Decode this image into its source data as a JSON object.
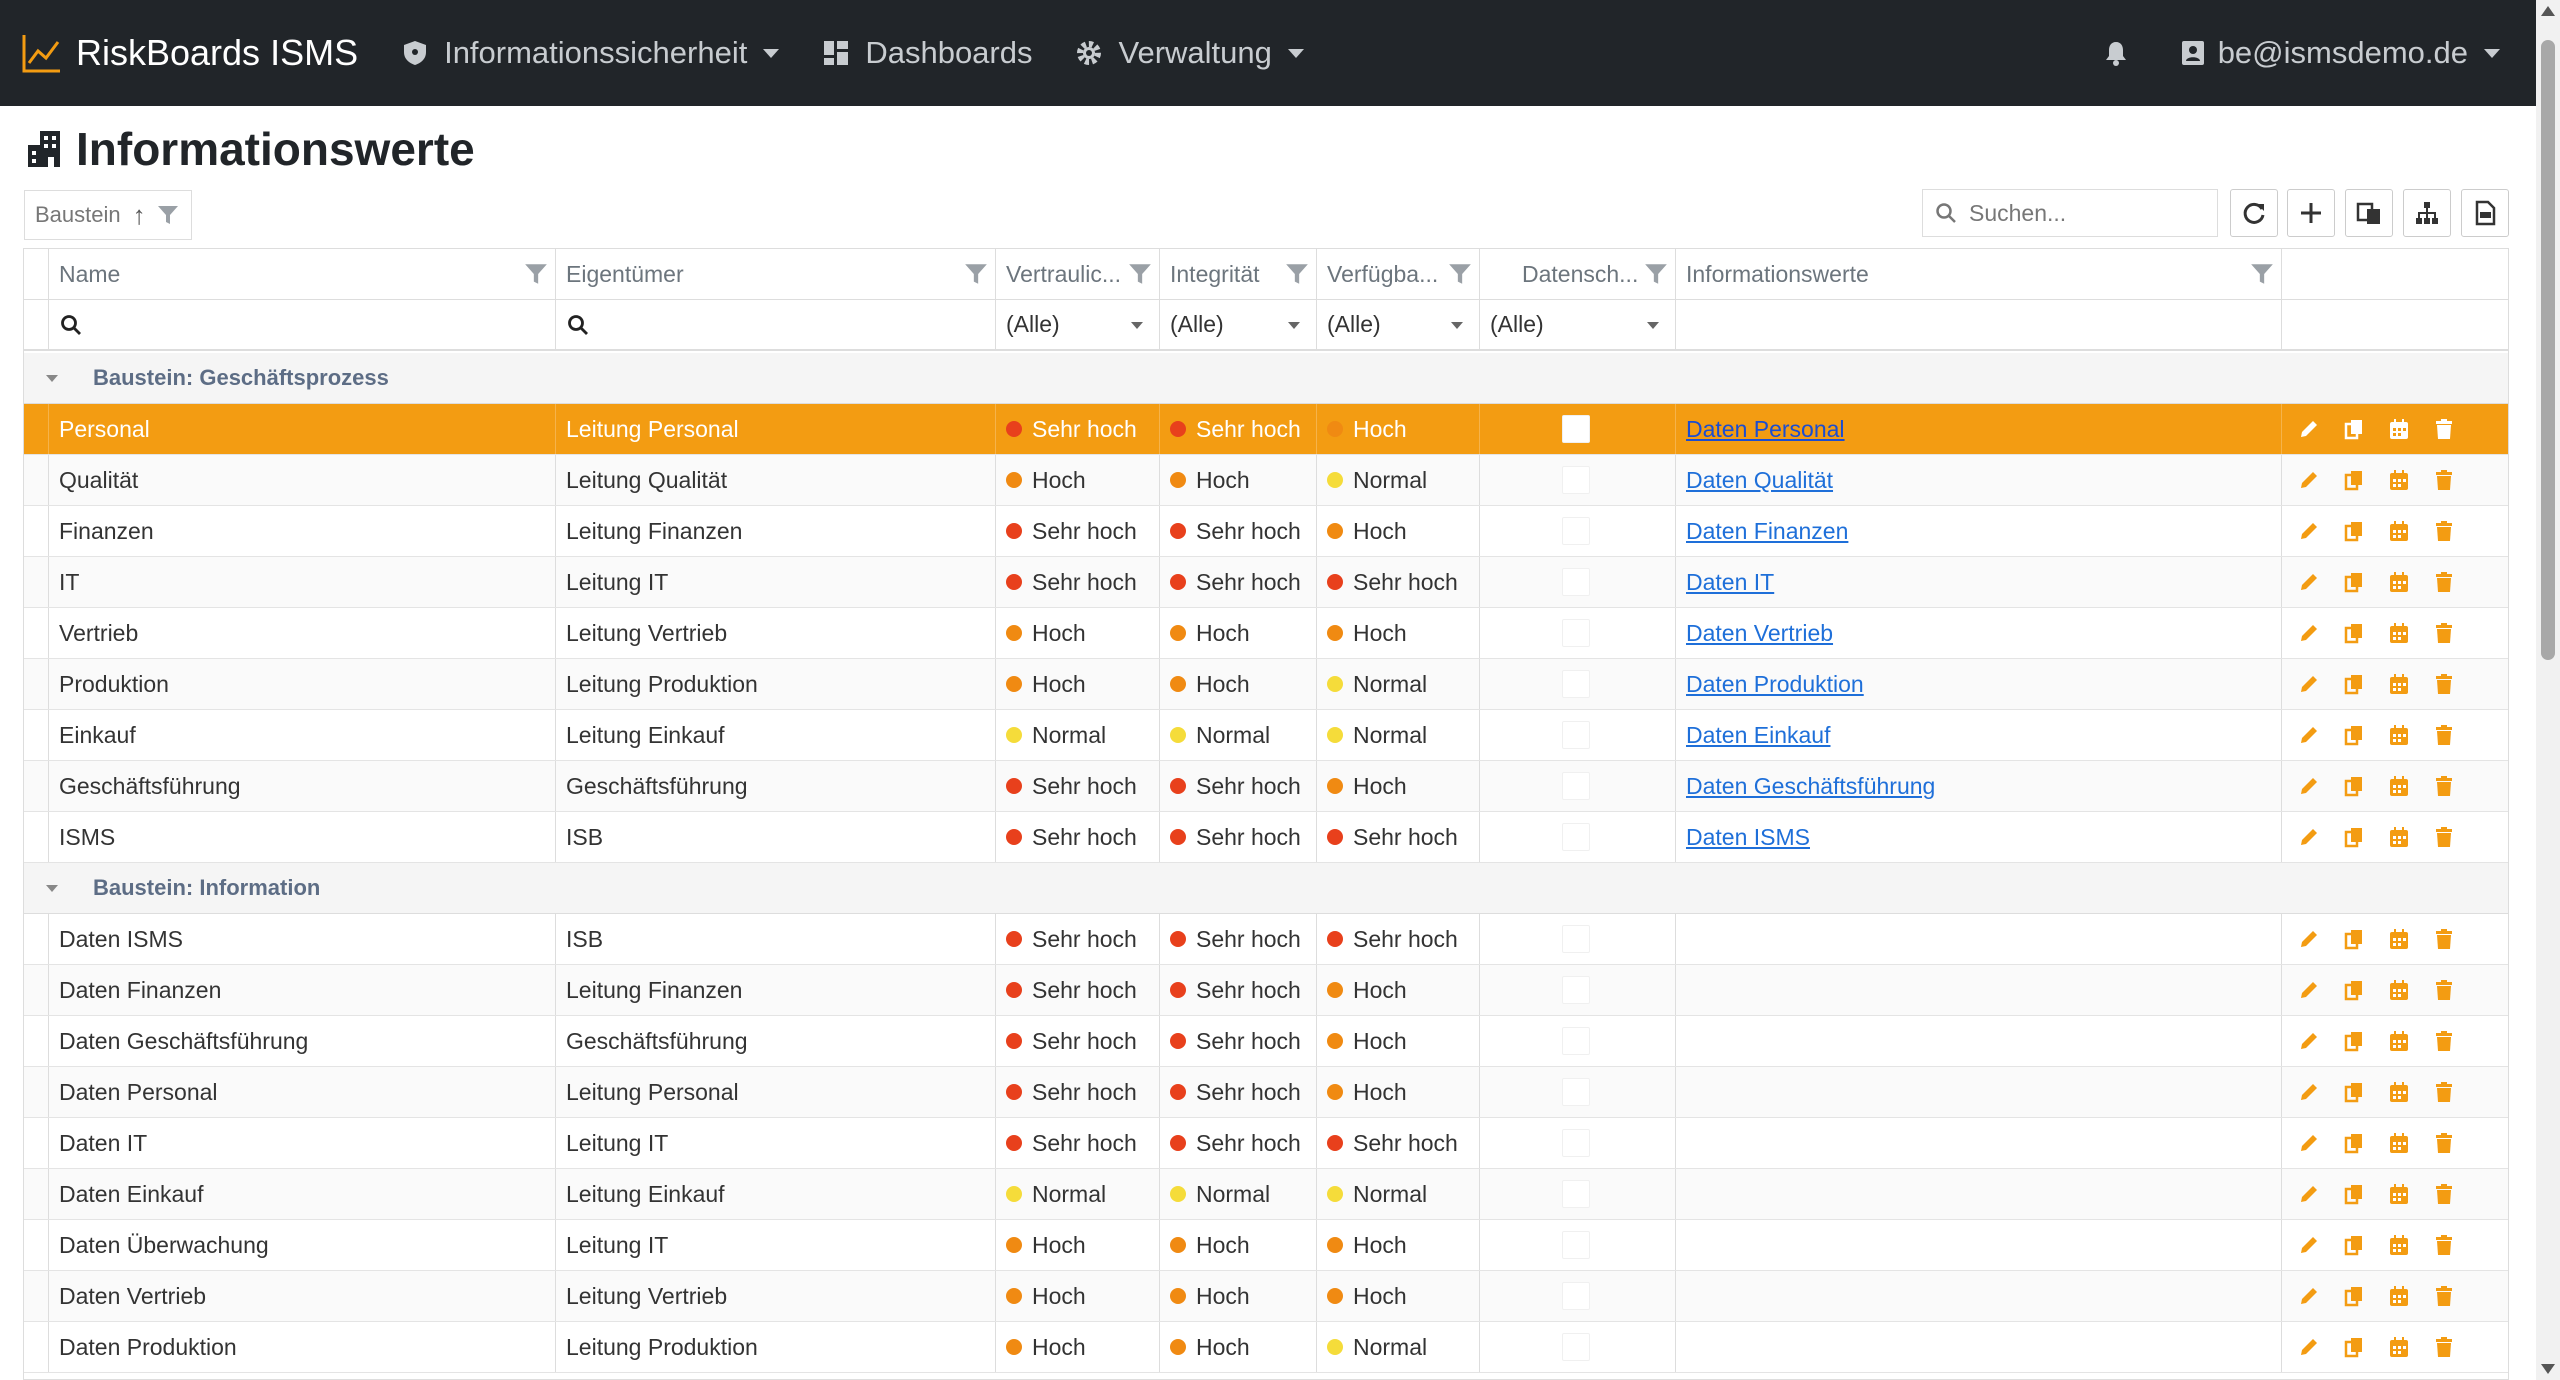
{
  "nav": {
    "brand": "RiskBoards ISMS",
    "items": [
      {
        "label": "Informationssicherheit",
        "icon": "shield-icon",
        "dropdown": true
      },
      {
        "label": "Dashboards",
        "icon": "dashboard-grid-icon",
        "dropdown": false
      },
      {
        "label": "Verwaltung",
        "icon": "gear-icon",
        "dropdown": true
      }
    ],
    "user": "be@ismsdemo.de"
  },
  "page": {
    "title": "Informationswerte"
  },
  "toolbar": {
    "group_by": "Baustein",
    "search_placeholder": "Suchen..."
  },
  "columns": [
    "Name",
    "Eigentümer",
    "Vertraulic...",
    "Integrität",
    "Verfügba...",
    "Datensch...",
    "Informationswerte"
  ],
  "filters": {
    "all": "(Alle)"
  },
  "colors": {
    "sehr_hoch": "#e8401c",
    "hoch": "#f08a12",
    "normal": "#f5dc3a",
    "accent": "#f39c12",
    "navbar": "#212529"
  },
  "groups": [
    {
      "label": "Baustein: Geschäftsprozess",
      "rows": [
        {
          "name": "Personal",
          "owner": "Leitung Personal",
          "v": "Sehr hoch",
          "i": "Sehr hoch",
          "a": "Hoch",
          "link": "Daten Personal",
          "selected": true
        },
        {
          "name": "Qualität",
          "owner": "Leitung Qualität",
          "v": "Hoch",
          "i": "Hoch",
          "a": "Normal",
          "link": "Daten Qualität"
        },
        {
          "name": "Finanzen",
          "owner": "Leitung Finanzen",
          "v": "Sehr hoch",
          "i": "Sehr hoch",
          "a": "Hoch",
          "link": "Daten Finanzen"
        },
        {
          "name": "IT",
          "owner": "Leitung IT",
          "v": "Sehr hoch",
          "i": "Sehr hoch",
          "a": "Sehr hoch",
          "link": "Daten IT"
        },
        {
          "name": "Vertrieb",
          "owner": "Leitung Vertrieb",
          "v": "Hoch",
          "i": "Hoch",
          "a": "Hoch",
          "link": "Daten Vertrieb"
        },
        {
          "name": "Produktion",
          "owner": "Leitung Produktion",
          "v": "Hoch",
          "i": "Hoch",
          "a": "Normal",
          "link": "Daten Produktion"
        },
        {
          "name": "Einkauf",
          "owner": "Leitung Einkauf",
          "v": "Normal",
          "i": "Normal",
          "a": "Normal",
          "link": "Daten Einkauf"
        },
        {
          "name": "Geschäftsführung",
          "owner": "Geschäftsführung",
          "v": "Sehr hoch",
          "i": "Sehr hoch",
          "a": "Hoch",
          "link": "Daten Geschäftsführung"
        },
        {
          "name": "ISMS",
          "owner": "ISB",
          "v": "Sehr hoch",
          "i": "Sehr hoch",
          "a": "Sehr hoch",
          "link": "Daten ISMS"
        }
      ]
    },
    {
      "label": "Baustein: Information",
      "rows": [
        {
          "name": "Daten ISMS",
          "owner": "ISB",
          "v": "Sehr hoch",
          "i": "Sehr hoch",
          "a": "Sehr hoch",
          "link": ""
        },
        {
          "name": "Daten Finanzen",
          "owner": "Leitung Finanzen",
          "v": "Sehr hoch",
          "i": "Sehr hoch",
          "a": "Hoch",
          "link": ""
        },
        {
          "name": "Daten Geschäftsführung",
          "owner": "Geschäftsführung",
          "v": "Sehr hoch",
          "i": "Sehr hoch",
          "a": "Hoch",
          "link": ""
        },
        {
          "name": "Daten Personal",
          "owner": "Leitung Personal",
          "v": "Sehr hoch",
          "i": "Sehr hoch",
          "a": "Hoch",
          "link": ""
        },
        {
          "name": "Daten IT",
          "owner": "Leitung IT",
          "v": "Sehr hoch",
          "i": "Sehr hoch",
          "a": "Sehr hoch",
          "link": ""
        },
        {
          "name": "Daten Einkauf",
          "owner": "Leitung Einkauf",
          "v": "Normal",
          "i": "Normal",
          "a": "Normal",
          "link": ""
        },
        {
          "name": "Daten Überwachung",
          "owner": "Leitung IT",
          "v": "Hoch",
          "i": "Hoch",
          "a": "Hoch",
          "link": ""
        },
        {
          "name": "Daten Vertrieb",
          "owner": "Leitung Vertrieb",
          "v": "Hoch",
          "i": "Hoch",
          "a": "Hoch",
          "link": ""
        },
        {
          "name": "Daten Produktion",
          "owner": "Leitung Produktion",
          "v": "Hoch",
          "i": "Hoch",
          "a": "Normal",
          "link": ""
        }
      ]
    }
  ]
}
